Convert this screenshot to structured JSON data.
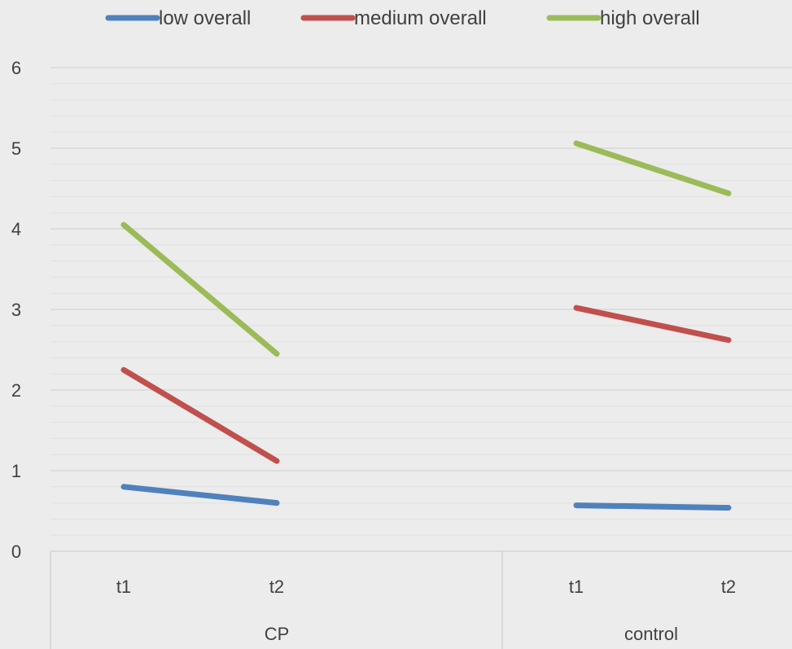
{
  "chart_data": {
    "type": "line",
    "title": "",
    "xlabel": "",
    "ylabel": "",
    "ylim": [
      0,
      6
    ],
    "yticks": [
      "0",
      "1",
      "2",
      "3",
      "4",
      "5",
      "6"
    ],
    "groups": [
      {
        "label": "CP",
        "categories": [
          "t1",
          "t2"
        ]
      },
      {
        "label": "control",
        "categories": [
          "t1",
          "t2"
        ]
      }
    ],
    "legend_position": "top",
    "grid": true,
    "series": [
      {
        "name": "low overall",
        "color": "#4f81bd",
        "values": [
          [
            0.8,
            0.6
          ],
          [
            0.57,
            0.54
          ]
        ]
      },
      {
        "name": "medium overall",
        "color": "#c0504d",
        "values": [
          [
            2.25,
            1.12
          ],
          [
            3.02,
            2.62
          ]
        ]
      },
      {
        "name": "high overall",
        "color": "#9bbb59",
        "values": [
          [
            4.05,
            2.45
          ],
          [
            5.06,
            4.44
          ]
        ]
      }
    ]
  }
}
